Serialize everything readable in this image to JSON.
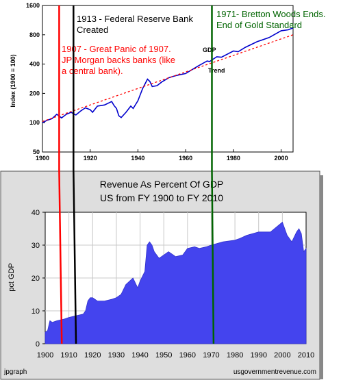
{
  "chart_data": [
    {
      "type": "line",
      "ylabel": "Index (1900 = 100)",
      "y_scale": "log",
      "xlim": [
        1900,
        2005
      ],
      "ylim": [
        50,
        1600
      ],
      "x_ticks": [
        1900,
        1920,
        1940,
        1960,
        1980,
        2000
      ],
      "y_ticks": [
        50,
        100,
        200,
        400,
        800,
        1600
      ],
      "series": [
        {
          "name": "GDP",
          "color": "#0000cc",
          "x": [
            1900,
            1902,
            1904,
            1906,
            1908,
            1910,
            1912,
            1914,
            1916,
            1918,
            1920,
            1921,
            1923,
            1926,
            1929,
            1930,
            1931,
            1932,
            1933,
            1935,
            1937,
            1938,
            1940,
            1942,
            1944,
            1945,
            1946,
            1948,
            1950,
            1953,
            1956,
            1960,
            1965,
            1969,
            1970,
            1973,
            1975,
            1980,
            1982,
            1985,
            1990,
            1995,
            2000,
            2003,
            2005
          ],
          "values": [
            100,
            106,
            110,
            122,
            112,
            122,
            128,
            120,
            132,
            142,
            136,
            128,
            148,
            152,
            165,
            150,
            140,
            118,
            113,
            128,
            148,
            140,
            168,
            225,
            280,
            265,
            235,
            240,
            262,
            290,
            305,
            320,
            380,
            430,
            425,
            475,
            470,
            545,
            535,
            595,
            680,
            750,
            880,
            900,
            940
          ]
        },
        {
          "name": "Trend",
          "color": "#ff0000",
          "style": "dashed",
          "x": [
            1900,
            2005
          ],
          "values": [
            103,
            800
          ]
        }
      ],
      "annotations": [
        {
          "x": 1907,
          "color": "#ff0000",
          "text": [
            "1907 - Great Panic of 1907.",
            "JP Morgan backs banks (like",
            "a central bank)."
          ]
        },
        {
          "x": 1913,
          "color": "#000000",
          "text": [
            "1913 - Federal Reserve Bank",
            "Created"
          ]
        },
        {
          "x": 1971,
          "color": "#006400",
          "text": [
            "1971- Bretton Woods Ends.",
            "End of Gold Standard"
          ]
        }
      ]
    },
    {
      "type": "area",
      "title": "Revenue As Percent Of GDP",
      "subtitle": "US from FY 1900 to FY 2010",
      "ylabel": "pct GDP",
      "xlim": [
        1900,
        2010
      ],
      "ylim": [
        0,
        40
      ],
      "x_ticks": [
        1900,
        1910,
        1920,
        1930,
        1940,
        1950,
        1960,
        1970,
        1980,
        1990,
        2000,
        2010
      ],
      "y_ticks": [
        0,
        10,
        20,
        30,
        40
      ],
      "footer_left": "jpgraph",
      "footer_right": "usgovernmentrevenue.com",
      "series": [
        {
          "name": "Revenue",
          "color": "#4444ee",
          "x": [
            1900,
            1901,
            1902,
            1903,
            1905,
            1908,
            1910,
            1913,
            1916,
            1917,
            1918,
            1919,
            1920,
            1922,
            1925,
            1928,
            1930,
            1932,
            1934,
            1937,
            1939,
            1940,
            1942,
            1943,
            1944,
            1945,
            1946,
            1948,
            1950,
            1952,
            1955,
            1958,
            1960,
            1963,
            1965,
            1968,
            1970,
            1975,
            1980,
            1982,
            1985,
            1990,
            1995,
            2000,
            2002,
            2004,
            2006,
            2007,
            2008,
            2009,
            2010
          ],
          "values": [
            3.5,
            4,
            7,
            6.5,
            7,
            7.5,
            8,
            8.5,
            9,
            10,
            13,
            14,
            14,
            13,
            13,
            13.5,
            14,
            15,
            18,
            20,
            17,
            19,
            22,
            30,
            31,
            30,
            28,
            26,
            27,
            28,
            26.5,
            27,
            29,
            29.5,
            29,
            29.5,
            30,
            31,
            31.5,
            32,
            33,
            34,
            34,
            37,
            33,
            31,
            34,
            35,
            33.5,
            28,
            29
          ]
        }
      ]
    }
  ]
}
